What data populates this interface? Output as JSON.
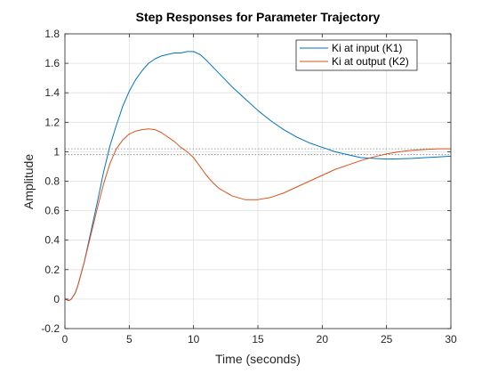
{
  "chart_data": {
    "type": "line",
    "title": "Step Responses for Parameter Trajectory",
    "xlabel": "Time (seconds)",
    "ylabel": "Amplitude",
    "xlim": [
      0,
      30
    ],
    "ylim": [
      -0.2,
      1.8
    ],
    "xticks": [
      0,
      5,
      10,
      15,
      20,
      25,
      30
    ],
    "yticks": [
      -0.2,
      0,
      0.2,
      0.4,
      0.6,
      0.8,
      1,
      1.2,
      1.4,
      1.6,
      1.8
    ],
    "xtick_labels": [
      "0",
      "5",
      "10",
      "15",
      "20",
      "25",
      "30"
    ],
    "ytick_labels": [
      "-0.2",
      "0",
      "0.2",
      "0.4",
      "0.6",
      "0.8",
      "1",
      "1.2",
      "1.4",
      "1.6",
      "1.8"
    ],
    "grid": true,
    "legend_position": "top-right",
    "reference_lines": [
      {
        "y": 1.02,
        "style": "dotted",
        "color": "#808080"
      },
      {
        "y": 0.98,
        "style": "dotted",
        "color": "#808080"
      }
    ],
    "series": [
      {
        "name": "Ki at input (K1)",
        "color": "#0072BD",
        "x": [
          0,
          0.3,
          0.5,
          0.8,
          1,
          1.5,
          2,
          2.5,
          3,
          3.5,
          4,
          4.5,
          5,
          5.5,
          6,
          6.5,
          7,
          7.5,
          8,
          8.5,
          9,
          9.5,
          10,
          10.5,
          11,
          12,
          13,
          14,
          15,
          16,
          17,
          18,
          19,
          20,
          21,
          22,
          23,
          24,
          25,
          26,
          27,
          28,
          29,
          30
        ],
        "y": [
          0,
          -0.01,
          0,
          0.04,
          0.09,
          0.25,
          0.45,
          0.65,
          0.86,
          1.04,
          1.18,
          1.31,
          1.41,
          1.49,
          1.55,
          1.6,
          1.63,
          1.65,
          1.66,
          1.67,
          1.67,
          1.68,
          1.68,
          1.66,
          1.62,
          1.53,
          1.44,
          1.36,
          1.28,
          1.21,
          1.15,
          1.1,
          1.06,
          1.03,
          1.0,
          0.98,
          0.96,
          0.955,
          0.95,
          0.952,
          0.955,
          0.96,
          0.965,
          0.97
        ]
      },
      {
        "name": "Ki at output (K2)",
        "color": "#D95319",
        "x": [
          0,
          0.3,
          0.5,
          0.8,
          1,
          1.5,
          2,
          2.5,
          3,
          3.5,
          4,
          4.5,
          5,
          5.5,
          6,
          6.5,
          7,
          7.5,
          8,
          8.5,
          9,
          9.5,
          10,
          10.5,
          11,
          11.5,
          12,
          13,
          14,
          15,
          16,
          17,
          18,
          19,
          20,
          21,
          22,
          23,
          24,
          25,
          26,
          27,
          28,
          29,
          30
        ],
        "y": [
          0,
          -0.01,
          0,
          0.04,
          0.09,
          0.25,
          0.43,
          0.61,
          0.78,
          0.92,
          1.02,
          1.08,
          1.12,
          1.14,
          1.15,
          1.155,
          1.15,
          1.13,
          1.1,
          1.07,
          1.03,
          1.0,
          0.96,
          0.9,
          0.84,
          0.79,
          0.75,
          0.7,
          0.675,
          0.675,
          0.69,
          0.72,
          0.76,
          0.8,
          0.84,
          0.88,
          0.91,
          0.94,
          0.965,
          0.985,
          1.0,
          1.01,
          1.015,
          1.02,
          1.02
        ]
      }
    ]
  }
}
